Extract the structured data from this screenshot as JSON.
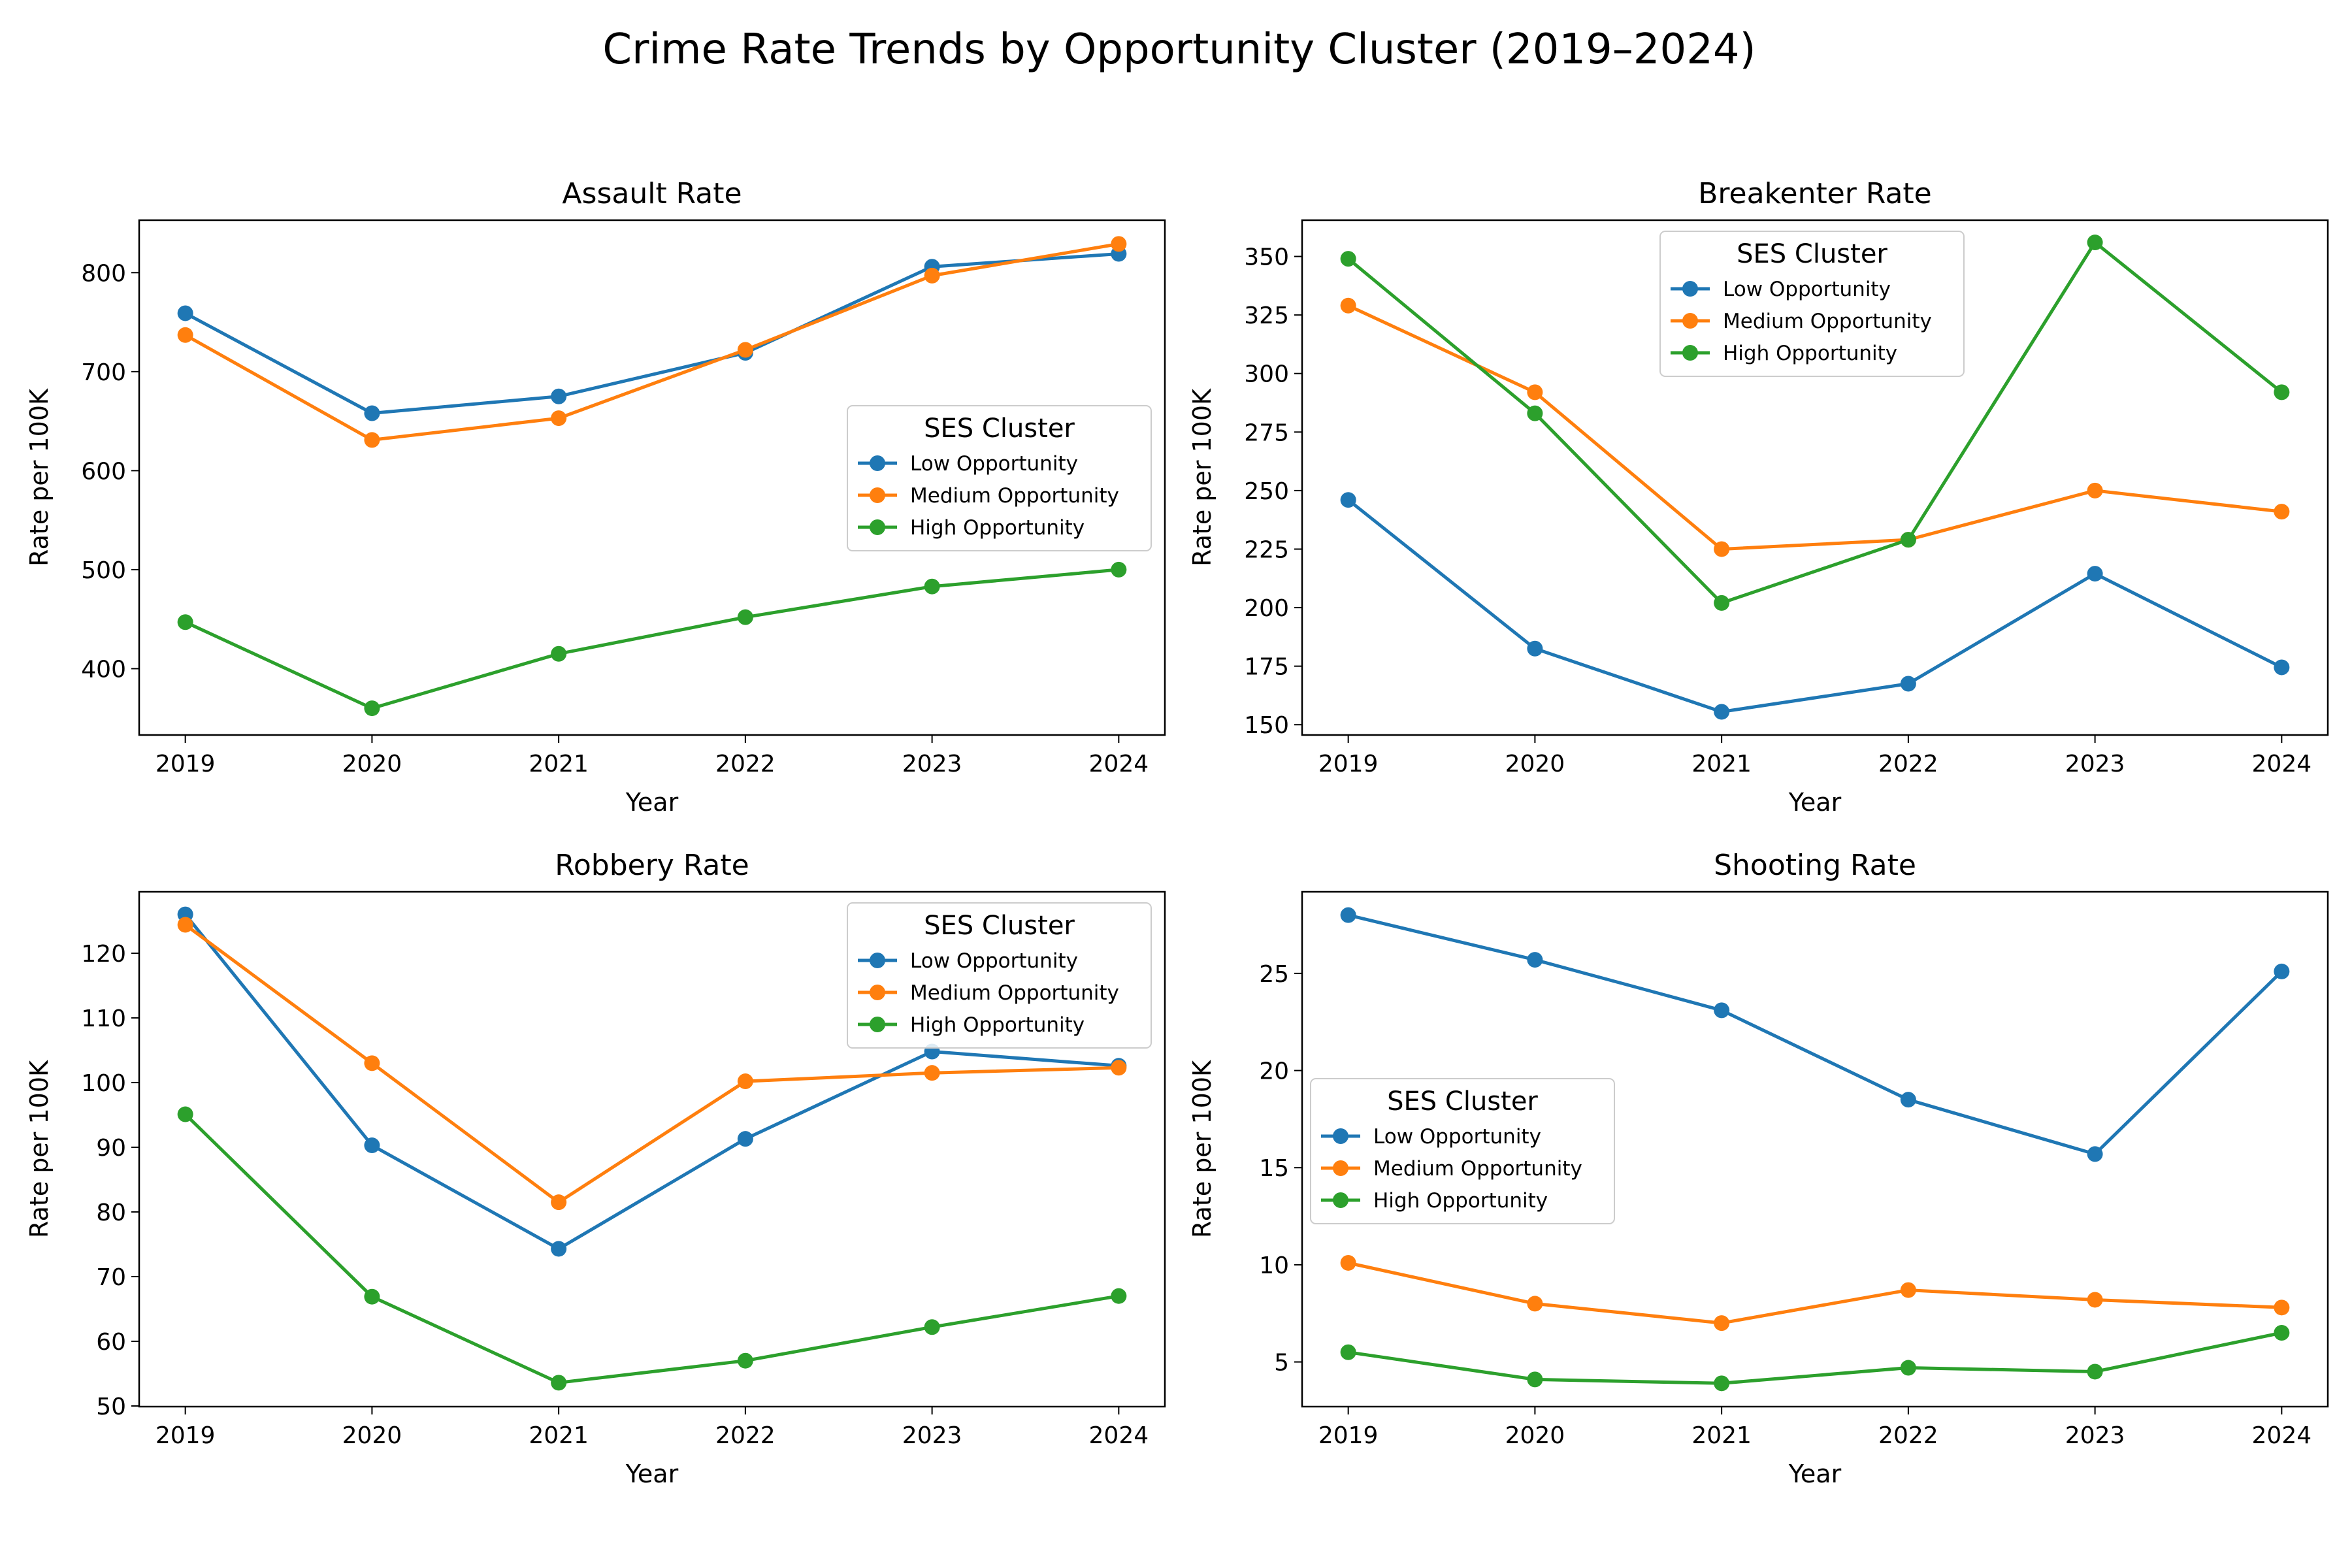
{
  "figure": {
    "title": "Crime Rate Trends by Opportunity Cluster (2019–2024)",
    "colors": {
      "Low Opportunity": "#1f77b4",
      "Medium Opportunity": "#ff7f0e",
      "High Opportunity": "#2ca02c"
    }
  },
  "chart_data": [
    {
      "type": "line",
      "title": "Assault Rate",
      "xlabel": "Year",
      "ylabel": "Rate per 100K",
      "x": [
        "2019",
        "2020",
        "2021",
        "2022",
        "2023",
        "2024"
      ],
      "ylim": [
        333,
        853
      ],
      "yticks": [
        "400",
        "500",
        "600",
        "700",
        "800"
      ],
      "legend": {
        "title": "SES Cluster",
        "position": "center-right"
      },
      "series": [
        {
          "name": "Low Opportunity",
          "values": [
            759,
            658,
            675,
            719,
            806,
            819
          ]
        },
        {
          "name": "Medium Opportunity",
          "values": [
            737,
            631,
            653,
            722,
            797,
            829
          ]
        },
        {
          "name": "High Opportunity",
          "values": [
            447,
            360,
            415,
            452,
            483,
            500
          ]
        }
      ]
    },
    {
      "type": "line",
      "title": "Breakenter Rate",
      "xlabel": "Year",
      "ylabel": "Rate per 100K",
      "x": [
        "2019",
        "2020",
        "2021",
        "2022",
        "2023",
        "2024"
      ],
      "ylim": [
        145.6,
        365.5
      ],
      "yticks": [
        "150",
        "175",
        "200",
        "225",
        "250",
        "275",
        "300",
        "325",
        "350"
      ],
      "legend": {
        "title": "SES Cluster",
        "position": "upper-center"
      },
      "series": [
        {
          "name": "Low Opportunity",
          "values": [
            246,
            182.5,
            155.5,
            167.5,
            214.5,
            174.5
          ]
        },
        {
          "name": "Medium Opportunity",
          "values": [
            329,
            292,
            225,
            229,
            250,
            241
          ]
        },
        {
          "name": "High Opportunity",
          "values": [
            349,
            283,
            202,
            229,
            356,
            292
          ]
        }
      ]
    },
    {
      "type": "line",
      "title": "Robbery Rate",
      "xlabel": "Year",
      "ylabel": "Rate per 100K",
      "x": [
        "2019",
        "2020",
        "2021",
        "2022",
        "2023",
        "2024"
      ],
      "ylim": [
        49.9,
        129.5
      ],
      "yticks": [
        "50",
        "60",
        "70",
        "80",
        "90",
        "100",
        "110",
        "120"
      ],
      "legend": {
        "title": "SES Cluster",
        "position": "upper-right"
      },
      "series": [
        {
          "name": "Low Opportunity",
          "values": [
            126,
            90.3,
            74.3,
            91.3,
            104.8,
            102.6
          ]
        },
        {
          "name": "Medium Opportunity",
          "values": [
            124.4,
            103,
            81.5,
            100.2,
            101.5,
            102.3
          ]
        },
        {
          "name": "High Opportunity",
          "values": [
            95.1,
            66.9,
            53.6,
            57,
            62.2,
            67
          ]
        }
      ]
    },
    {
      "type": "line",
      "title": "Shooting Rate",
      "xlabel": "Year",
      "ylabel": "Rate per 100K",
      "x": [
        "2019",
        "2020",
        "2021",
        "2022",
        "2023",
        "2024"
      ],
      "ylim": [
        2.7,
        29.2
      ],
      "yticks": [
        "5",
        "10",
        "15",
        "20",
        "25"
      ],
      "legend": {
        "title": "SES Cluster",
        "position": "center-left"
      },
      "series": [
        {
          "name": "Low Opportunity",
          "values": [
            28,
            25.7,
            23.1,
            18.5,
            15.7,
            25.1
          ]
        },
        {
          "name": "Medium Opportunity",
          "values": [
            10.1,
            8,
            7,
            8.7,
            8.2,
            7.8
          ]
        },
        {
          "name": "High Opportunity",
          "values": [
            5.5,
            4.1,
            3.9,
            4.7,
            4.5,
            6.5
          ]
        }
      ]
    }
  ]
}
